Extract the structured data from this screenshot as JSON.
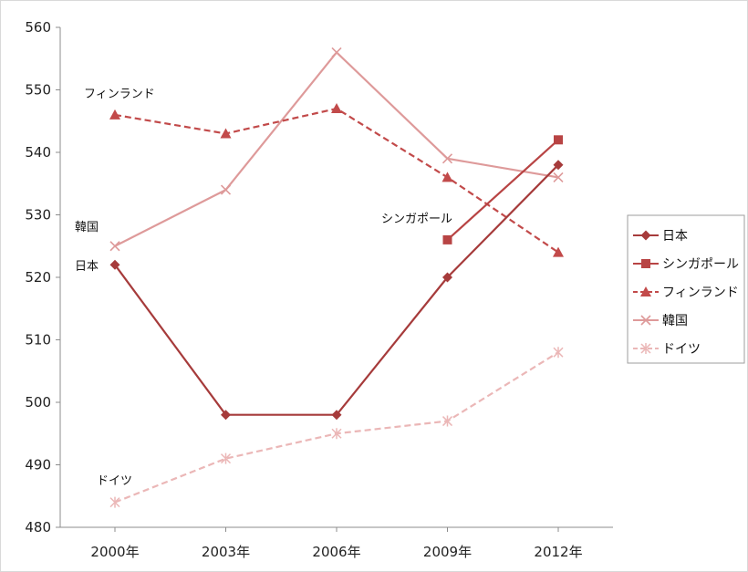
{
  "chart_data": {
    "type": "line",
    "categories": [
      "2000年",
      "2003年",
      "2006年",
      "2009年",
      "2012年"
    ],
    "ylim": [
      480,
      560
    ],
    "yticks": [
      480,
      490,
      500,
      510,
      520,
      530,
      540,
      550,
      560
    ],
    "grid": false,
    "legend_position": "right",
    "series": [
      {
        "name": "日本",
        "values": [
          522,
          498,
          498,
          520,
          538
        ],
        "color": "#a63b3b",
        "dash": "solid",
        "marker": "diamond"
      },
      {
        "name": "シンガポール",
        "values": [
          null,
          null,
          null,
          526,
          542
        ],
        "color": "#b84444",
        "dash": "solid",
        "marker": "square"
      },
      {
        "name": "フィンランド",
        "values": [
          546,
          543,
          547,
          536,
          524
        ],
        "color": "#c24a4a",
        "dash": "dashed",
        "marker": "triangle"
      },
      {
        "name": "韓国",
        "values": [
          525,
          534,
          556,
          539,
          536
        ],
        "color": "#de9a9a",
        "dash": "solid",
        "marker": "x"
      },
      {
        "name": "ドイツ",
        "values": [
          484,
          491,
          495,
          497,
          508
        ],
        "color": "#ebb7b7",
        "dash": "dashed",
        "marker": "star"
      }
    ],
    "annotations": [
      "フィンランド",
      "韓国",
      "日本",
      "シンガポール",
      "ドイツ"
    ]
  }
}
